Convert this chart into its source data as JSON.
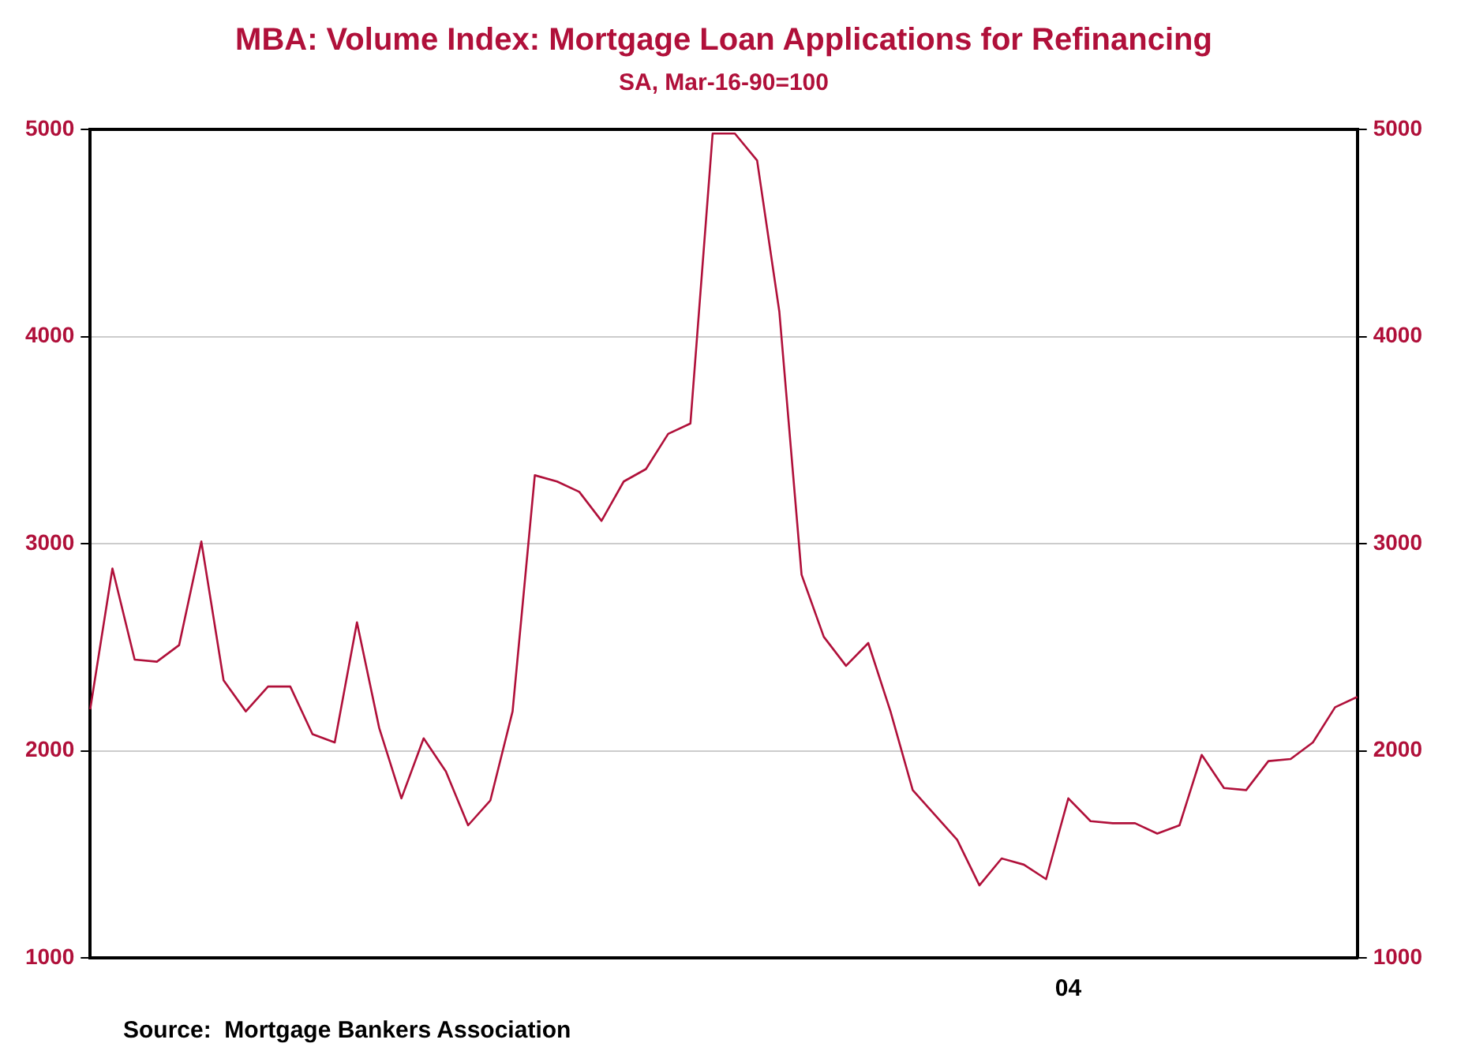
{
  "chart_data": {
    "type": "line",
    "title": "MBA: Volume Index: Mortgage Loan Applications for Refinancing",
    "subtitle": "SA, Mar-16-90=100",
    "categories": [
      null,
      null,
      null,
      null,
      null,
      null,
      null,
      null,
      null,
      null,
      null,
      null,
      null,
      null,
      null,
      null,
      null,
      null,
      null,
      null,
      null,
      null,
      null,
      null,
      null,
      null,
      null,
      null,
      null,
      null,
      null,
      null,
      null,
      null,
      null,
      null,
      null,
      null,
      null,
      null,
      null,
      null,
      null,
      null,
      "04",
      null,
      null,
      null,
      null,
      null,
      null,
      null,
      null,
      null,
      null,
      null,
      null,
      null
    ],
    "series": [
      {
        "color": "#b0103a",
        "values": [
          2200,
          2880,
          2440,
          2430,
          2510,
          3010,
          2340,
          2190,
          2310,
          2310,
          2080,
          2040,
          2620,
          2110,
          1770,
          2060,
          1900,
          1640,
          1760,
          2190,
          3330,
          3300,
          3250,
          3110,
          3300,
          3360,
          3530,
          3580,
          4980,
          4980,
          4850,
          4120,
          2850,
          2550,
          2410,
          2520,
          2190,
          1810,
          1690,
          1570,
          1350,
          1480,
          1450,
          1380,
          1770,
          1660,
          1650,
          1650,
          1600,
          1640,
          1980,
          1820,
          1810,
          1950,
          1960,
          2040,
          2210,
          2260
        ]
      }
    ],
    "ylim": [
      1000,
      5000
    ],
    "yticks": [
      1000,
      2000,
      3000,
      4000,
      5000
    ],
    "y2lim": [
      1000,
      5000
    ],
    "y2ticks": [
      1000,
      2000,
      3000,
      4000,
      5000
    ],
    "grid": "y",
    "marker": "none",
    "line_style": "solid",
    "legend": false,
    "annotations": [
      "Source:  Mortgage Bankers Association"
    ]
  }
}
